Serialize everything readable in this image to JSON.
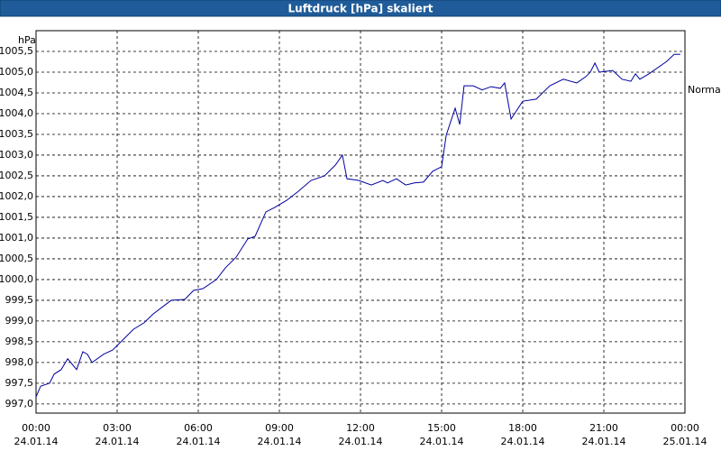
{
  "chart_data": {
    "type": "line",
    "title": "Luftdruck [hPa] skaliert",
    "y_unit": "hPa",
    "annotation": "Normal",
    "x": [
      0,
      0.17,
      0.5,
      0.67,
      0.93,
      1.17,
      1.5,
      1.73,
      1.9,
      2.07,
      2.5,
      2.83,
      3.17,
      3.6,
      4.0,
      4.33,
      5.0,
      5.5,
      5.83,
      6.17,
      6.67,
      7.0,
      7.4,
      7.83,
      8.1,
      8.5,
      8.83,
      9.27,
      9.67,
      10.17,
      10.67,
      11.07,
      11.33,
      11.5,
      11.93,
      12.4,
      12.83,
      13.0,
      13.33,
      13.67,
      14.0,
      14.33,
      14.67,
      15.0,
      15.17,
      15.5,
      15.67,
      15.83,
      16.17,
      16.5,
      16.83,
      17.17,
      17.33,
      17.57,
      18.0,
      18.5,
      19.0,
      19.5,
      20.0,
      20.33,
      20.5,
      20.67,
      20.83,
      21.33,
      21.67,
      22.0,
      22.17,
      22.33,
      22.67,
      23.33,
      23.6,
      23.83
    ],
    "series": [
      {
        "name": "Luftdruck",
        "color": "#0000a0",
        "values": [
          997.17,
          997.43,
          997.5,
          997.72,
          997.83,
          998.09,
          997.83,
          998.26,
          998.2,
          998.0,
          998.2,
          998.3,
          998.52,
          998.8,
          998.96,
          999.17,
          999.5,
          999.52,
          999.74,
          999.78,
          1000.0,
          1000.28,
          1000.54,
          1000.98,
          1001.04,
          1001.63,
          1001.74,
          1001.91,
          1002.11,
          1002.39,
          1002.5,
          1002.76,
          1003.0,
          1002.43,
          1002.39,
          1002.28,
          1002.39,
          1002.33,
          1002.43,
          1002.28,
          1002.33,
          1002.35,
          1002.61,
          1002.72,
          1003.48,
          1004.13,
          1003.74,
          1004.67,
          1004.67,
          1004.57,
          1004.65,
          1004.61,
          1004.74,
          1003.87,
          1004.3,
          1004.35,
          1004.67,
          1004.83,
          1004.74,
          1004.89,
          1005.0,
          1005.22,
          1005.0,
          1005.04,
          1004.83,
          1004.78,
          1004.96,
          1004.83,
          1004.96,
          1005.26,
          1005.43,
          1005.43
        ]
      }
    ],
    "xlim": [
      0,
      24
    ],
    "xticks": [
      {
        "value": 0,
        "label": "00:00",
        "date": "24.01.14"
      },
      {
        "value": 3,
        "label": "03:00",
        "date": "24.01.14"
      },
      {
        "value": 6,
        "label": "06:00",
        "date": "24.01.14"
      },
      {
        "value": 9,
        "label": "09:00",
        "date": "24.01.14"
      },
      {
        "value": 12,
        "label": "12:00",
        "date": "24.01.14"
      },
      {
        "value": 15,
        "label": "15:00",
        "date": "24.01.14"
      },
      {
        "value": 18,
        "label": "18:00",
        "date": "24.01.14"
      },
      {
        "value": 21,
        "label": "21:00",
        "date": "24.01.14"
      },
      {
        "value": 24,
        "label": "00:00",
        "date": "25.01.14"
      }
    ],
    "ylim": [
      996.78,
      1006
    ],
    "yticks": [
      {
        "value": 997,
        "label": "997,0"
      },
      {
        "value": 997.5,
        "label": "997,5"
      },
      {
        "value": 998,
        "label": "998,0"
      },
      {
        "value": 998.5,
        "label": "998,5"
      },
      {
        "value": 999,
        "label": "999,0"
      },
      {
        "value": 999.5,
        "label": "999,5"
      },
      {
        "value": 1000,
        "label": "1000,0"
      },
      {
        "value": 1000.5,
        "label": "1000,5"
      },
      {
        "value": 1001,
        "label": "1001,0"
      },
      {
        "value": 1001.5,
        "label": "1001,5"
      },
      {
        "value": 1002,
        "label": "1002,0"
      },
      {
        "value": 1002.5,
        "label": "1002,5"
      },
      {
        "value": 1003,
        "label": "1003,0"
      },
      {
        "value": 1003.5,
        "label": "1003,5"
      },
      {
        "value": 1004,
        "label": "1004,0"
      },
      {
        "value": 1004.5,
        "label": "1004,5"
      },
      {
        "value": 1005,
        "label": "1005,0"
      },
      {
        "value": 1005.5,
        "label": "1005,5"
      }
    ],
    "grid": true
  }
}
